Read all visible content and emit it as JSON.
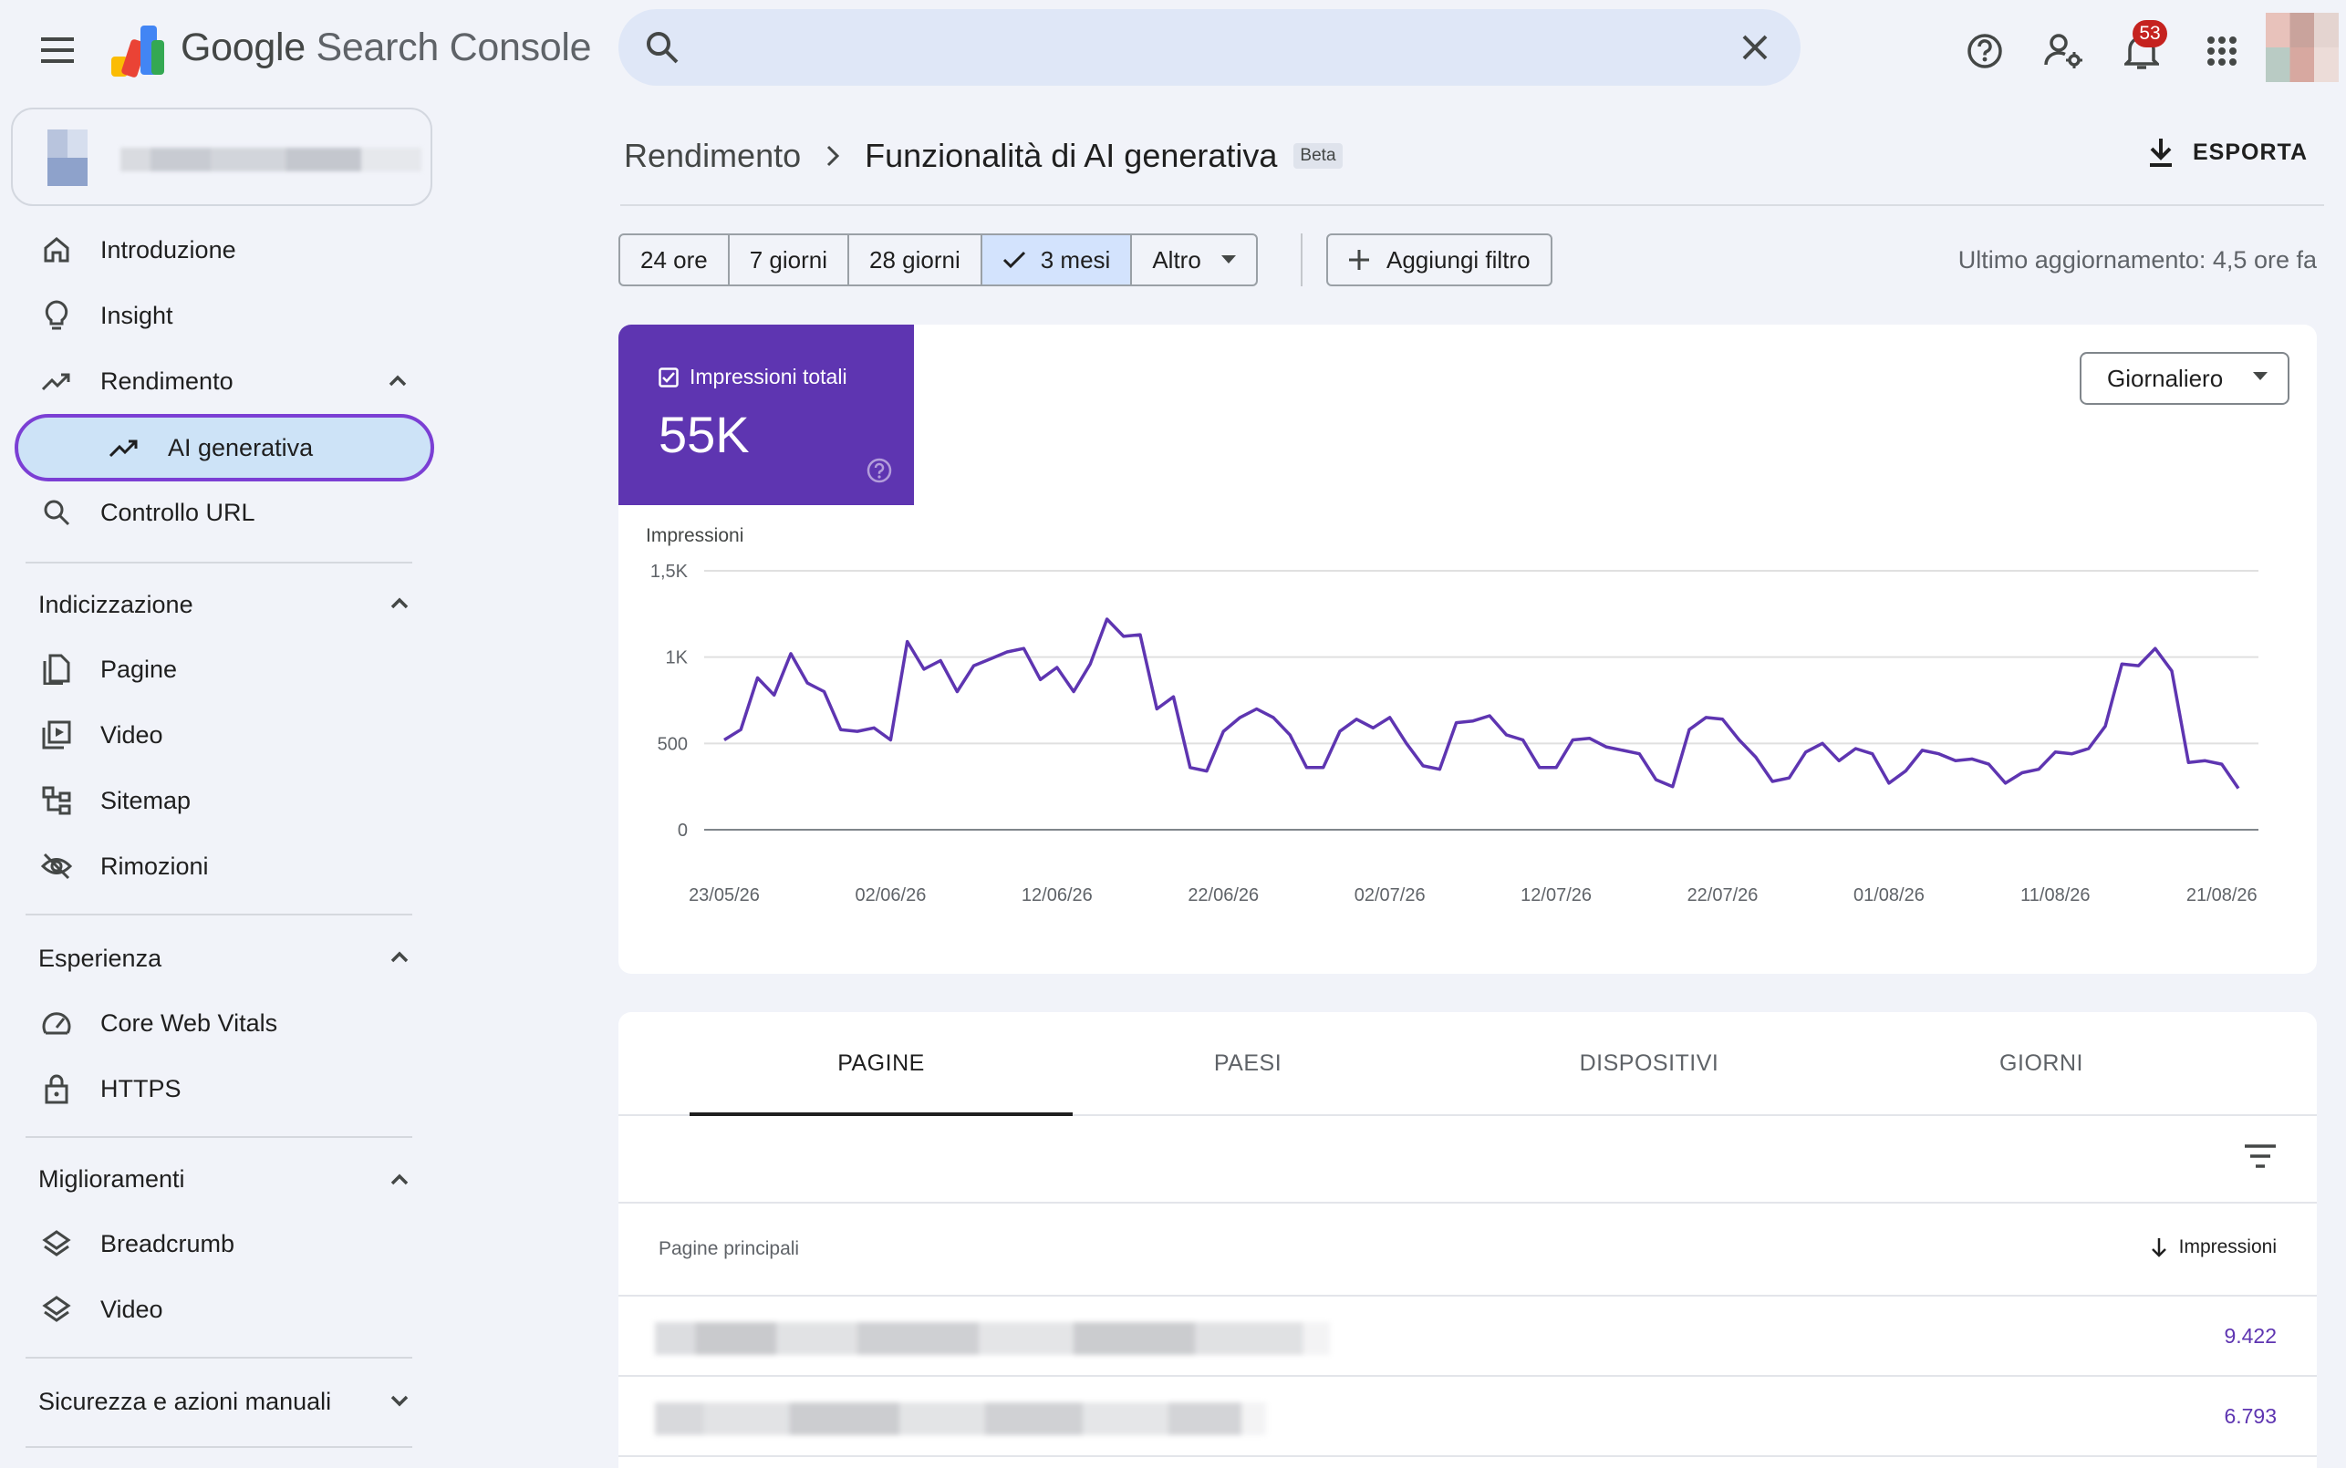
{
  "app": {
    "name_google": "Google",
    "name_product": "Search Console"
  },
  "search": {
    "placeholder": ""
  },
  "notifications": {
    "count": "53"
  },
  "sidebar": {
    "top_items": [
      {
        "label": "Introduzione",
        "icon": "home-icon"
      },
      {
        "label": "Insight",
        "icon": "lightbulb-icon"
      },
      {
        "label": "Rendimento",
        "icon": "trending-icon"
      },
      {
        "label": "AI generativa",
        "icon": "trending-icon"
      },
      {
        "label": "Controllo URL",
        "icon": "search-icon"
      }
    ],
    "sections": [
      {
        "title": "Indicizzazione",
        "items": [
          {
            "label": "Pagine",
            "icon": "pages-icon"
          },
          {
            "label": "Video",
            "icon": "video-icon"
          },
          {
            "label": "Sitemap",
            "icon": "sitemap-icon"
          },
          {
            "label": "Rimozioni",
            "icon": "eye-off-icon"
          }
        ]
      },
      {
        "title": "Esperienza",
        "items": [
          {
            "label": "Core Web Vitals",
            "icon": "speedometer-icon"
          },
          {
            "label": "HTTPS",
            "icon": "lock-icon"
          }
        ]
      },
      {
        "title": "Miglioramenti",
        "items": [
          {
            "label": "Breadcrumb",
            "icon": "layers-icon"
          },
          {
            "label": "Video",
            "icon": "layers-icon"
          }
        ]
      },
      {
        "title": "Sicurezza e azioni manuali",
        "items": []
      }
    ]
  },
  "header": {
    "breadcrumb_root": "Rendimento",
    "breadcrumb_current": "Funzionalità di AI generativa",
    "badge": "Beta",
    "export_label": "ESPORTA"
  },
  "filters": {
    "ranges": [
      "24 ore",
      "7 giorni",
      "28 giorni",
      "3 mesi",
      "Altro"
    ],
    "selected": "3 mesi",
    "add_filter": "Aggiungi filtro",
    "last_update": "Ultimo aggiornamento: 4,5 ore fa"
  },
  "metric": {
    "label": "Impressioni totali",
    "value": "55K",
    "color": "#5e35b1"
  },
  "granularity": "Giornaliero",
  "chart_data": {
    "type": "line",
    "ylabel": "Impressioni",
    "y_ticks": [
      "0",
      "500",
      "1K",
      "1,5K"
    ],
    "ylim": [
      0,
      1500
    ],
    "x_tick_labels": [
      "23/05/26",
      "02/06/26",
      "12/06/26",
      "22/06/26",
      "02/07/26",
      "12/07/26",
      "22/07/26",
      "01/08/26",
      "11/08/26",
      "21/08/26"
    ],
    "x_start": "23/05/26",
    "x_end": "22/08/26",
    "grid": true,
    "series": [
      {
        "color": "#5e35b1",
        "values": [
          520,
          580,
          880,
          780,
          1020,
          850,
          800,
          580,
          570,
          590,
          520,
          1090,
          930,
          980,
          800,
          950,
          990,
          1030,
          1050,
          870,
          940,
          800,
          960,
          1220,
          1120,
          1130,
          700,
          770,
          360,
          340,
          570,
          650,
          700,
          650,
          550,
          360,
          360,
          570,
          640,
          590,
          650,
          500,
          370,
          350,
          620,
          630,
          660,
          550,
          520,
          360,
          360,
          520,
          530,
          480,
          460,
          440,
          290,
          250,
          580,
          650,
          640,
          520,
          420,
          280,
          300,
          450,
          500,
          400,
          470,
          440,
          270,
          340,
          460,
          440,
          400,
          410,
          380,
          270,
          330,
          350,
          450,
          440,
          470,
          600,
          960,
          950,
          1050,
          920,
          390,
          400,
          380,
          240
        ]
      }
    ]
  },
  "table": {
    "tabs": [
      "PAGINE",
      "PAESI",
      "DISPOSITIVI",
      "GIORNI"
    ],
    "active_tab": "PAGINE",
    "col_page": "Pagine principali",
    "col_impressions": "Impressioni",
    "rows": [
      {
        "value": "9.422"
      },
      {
        "value": "6.793"
      }
    ]
  }
}
